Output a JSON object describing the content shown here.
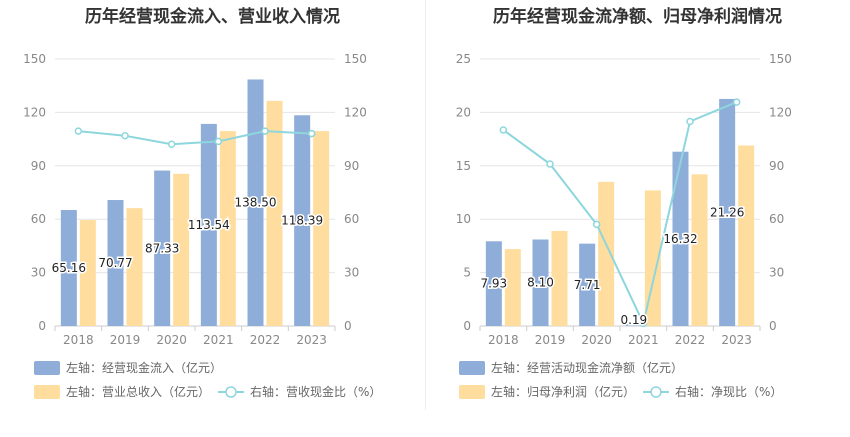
{
  "chart_data": [
    {
      "type": "bar",
      "title": "历年经营现金流入、营业收入情况",
      "categories": [
        "2018",
        "2019",
        "2020",
        "2021",
        "2022",
        "2023"
      ],
      "left_axis": {
        "ticks": [
          "0",
          "30",
          "60",
          "90",
          "120",
          "150"
        ],
        "ylim": [
          0,
          150
        ]
      },
      "right_axis": {
        "ticks": [
          "0",
          "30",
          "60",
          "90",
          "120",
          "150"
        ],
        "ylim": [
          0,
          150
        ]
      },
      "series": [
        {
          "name": "左轴：经营现金流入（亿元）",
          "kind": "bar",
          "axis": "left",
          "color": "#8eadd9",
          "values": [
            65.16,
            70.77,
            87.33,
            113.54,
            138.5,
            118.39
          ],
          "labels": [
            "65.16",
            "70.77",
            "87.33",
            "113.54",
            "138.50",
            "118.39"
          ]
        },
        {
          "name": "左轴：营业总收入（亿元）",
          "kind": "bar",
          "axis": "left",
          "color": "#ffdd9e",
          "values": [
            59.5,
            66.2,
            85.5,
            109.5,
            126.5,
            109.5
          ]
        },
        {
          "name": "右轴：营收现金比（%）",
          "kind": "line",
          "axis": "right",
          "color": "#8ed6dd",
          "values": [
            109.5,
            106.9,
            102.1,
            103.7,
            109.5,
            108.1
          ]
        }
      ],
      "grid": true,
      "legend_position": "bottom"
    },
    {
      "type": "bar",
      "title": "历年经营现金流净额、归母净利润情况",
      "categories": [
        "2018",
        "2019",
        "2020",
        "2021",
        "2022",
        "2023"
      ],
      "left_axis": {
        "ticks": [
          "0",
          "5",
          "10",
          "15",
          "20",
          "25"
        ],
        "ylim": [
          0,
          25
        ]
      },
      "right_axis": {
        "ticks": [
          "0",
          "30",
          "60",
          "90",
          "120",
          "150"
        ],
        "ylim": [
          0,
          150
        ]
      },
      "series": [
        {
          "name": "左轴：经营活动现金流净额（亿元）",
          "kind": "bar",
          "axis": "left",
          "color": "#8eadd9",
          "values": [
            7.93,
            8.1,
            7.71,
            0.19,
            16.32,
            21.26
          ],
          "labels": [
            "7.93",
            "8.10",
            "7.71",
            "0.19",
            "16.32",
            "21.26"
          ]
        },
        {
          "name": "左轴：归母净利润（亿元）",
          "kind": "bar",
          "axis": "left",
          "color": "#ffdd9e",
          "values": [
            7.2,
            8.9,
            13.5,
            12.7,
            14.2,
            16.9
          ]
        },
        {
          "name": "右轴：净现比（%）",
          "kind": "line",
          "axis": "right",
          "color": "#8ed6dd",
          "values": [
            110.1,
            91.0,
            57.1,
            1.5,
            114.9,
            125.8
          ]
        }
      ],
      "grid": true,
      "legend_position": "bottom"
    }
  ]
}
